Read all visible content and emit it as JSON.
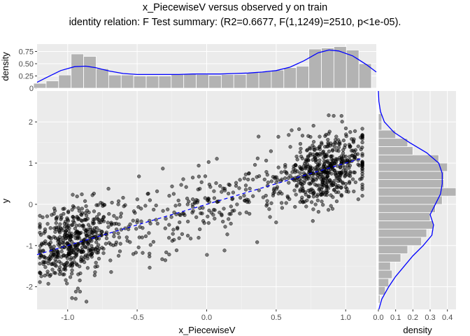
{
  "title": "x_PiecewiseV versus observed y on train",
  "subtitle": "identity relation: F Test summary: (R2=0.6677, F(1,1249)=2510, p<1e-05).",
  "colors": {
    "panel_bg": "#ebebeb",
    "grid_major": "#ffffff",
    "points": "#000000",
    "fit_line": "#0000ff",
    "density_line": "#0000ff",
    "hist_fill": "#b3b3b3"
  },
  "chart_data": [
    {
      "type": "scatter",
      "xlabel": "x_PiecewiseV",
      "ylabel": "y",
      "xlim": [
        -1.22,
        1.22
      ],
      "ylim": [
        -2.55,
        2.75
      ],
      "xticks": [
        -1.0,
        -0.5,
        0.0,
        0.5,
        1.0
      ],
      "xtick_labels": [
        "-1.0",
        "-0.5",
        "0.0",
        "0.5",
        "1.0"
      ],
      "yticks": [
        -2,
        -1,
        0,
        1,
        2
      ],
      "ytick_labels": [
        "-2",
        "-1",
        "0",
        "1",
        "2"
      ],
      "n_points": 1251,
      "point_alpha": 0.5,
      "fit_line": {
        "style": "dashed",
        "x": [
          -1.22,
          1.12
        ],
        "y": [
          -1.22,
          1.12
        ]
      },
      "grid": true
    },
    {
      "type": "bar",
      "role": "top-marginal-histogram",
      "ylabel": "density",
      "ylim": [
        0,
        0.9
      ],
      "yticks": [
        0,
        0.25,
        0.5,
        0.75
      ],
      "ytick_labels": [
        "0",
        "0.25",
        "0.50",
        "0.75"
      ],
      "bins_x": [
        -1.2,
        -1.11,
        -1.02,
        -0.93,
        -0.84,
        -0.75,
        -0.66,
        -0.57,
        -0.48,
        -0.39,
        -0.3,
        -0.21,
        -0.12,
        -0.03,
        0.06,
        0.15,
        0.24,
        0.33,
        0.42,
        0.51,
        0.6,
        0.69,
        0.78,
        0.87,
        0.96,
        1.05,
        1.14
      ],
      "values": [
        0.1,
        0.15,
        0.27,
        0.7,
        0.65,
        0.4,
        0.27,
        0.27,
        0.25,
        0.25,
        0.25,
        0.28,
        0.3,
        0.28,
        0.26,
        0.28,
        0.28,
        0.32,
        0.34,
        0.37,
        0.42,
        0.45,
        0.8,
        0.82,
        0.85,
        0.78,
        0.5
      ],
      "density_curve": {
        "x": [
          -1.22,
          -1.15,
          -1.05,
          -0.95,
          -0.87,
          -0.8,
          -0.7,
          -0.6,
          -0.5,
          -0.4,
          -0.3,
          -0.2,
          -0.1,
          0.0,
          0.1,
          0.2,
          0.3,
          0.4,
          0.5,
          0.6,
          0.7,
          0.8,
          0.88,
          0.95,
          1.05,
          1.15,
          1.22
        ],
        "y": [
          0.12,
          0.22,
          0.36,
          0.44,
          0.45,
          0.42,
          0.35,
          0.3,
          0.28,
          0.28,
          0.28,
          0.28,
          0.29,
          0.29,
          0.29,
          0.3,
          0.31,
          0.33,
          0.36,
          0.43,
          0.56,
          0.72,
          0.78,
          0.76,
          0.66,
          0.48,
          0.33
        ]
      }
    },
    {
      "type": "bar",
      "role": "right-marginal-histogram",
      "orientation": "horizontal",
      "xlabel": "density",
      "xlim": [
        0,
        0.45
      ],
      "xticks": [
        0,
        0.1,
        0.2,
        0.3,
        0.4
      ],
      "xtick_labels": [
        "0.0",
        "0.1",
        "0.2",
        "0.3",
        "0.4"
      ],
      "bins_y": [
        -2.3,
        -2.1,
        -1.9,
        -1.7,
        -1.5,
        -1.3,
        -1.1,
        -0.9,
        -0.7,
        -0.5,
        -0.3,
        -0.1,
        0.1,
        0.3,
        0.5,
        0.7,
        0.9,
        1.1,
        1.3,
        1.5,
        1.7,
        1.9,
        2.1
      ],
      "values": [
        0.01,
        0.04,
        0.06,
        0.08,
        0.07,
        0.13,
        0.17,
        0.25,
        0.28,
        0.32,
        0.3,
        0.33,
        0.37,
        0.45,
        0.38,
        0.38,
        0.4,
        0.35,
        0.2,
        0.17,
        0.1,
        0.02,
        0.02
      ],
      "density_curve": {
        "y": [
          -2.55,
          -2.3,
          -2.0,
          -1.75,
          -1.5,
          -1.25,
          -1.0,
          -0.75,
          -0.5,
          -0.25,
          0.0,
          0.25,
          0.5,
          0.75,
          1.0,
          1.25,
          1.5,
          1.75,
          2.0,
          2.25,
          2.5,
          2.75
        ],
        "x": [
          0.003,
          0.02,
          0.06,
          0.1,
          0.15,
          0.2,
          0.26,
          0.31,
          0.32,
          0.3,
          0.33,
          0.36,
          0.37,
          0.37,
          0.35,
          0.28,
          0.18,
          0.09,
          0.035,
          0.012,
          0.003,
          0.0
        ]
      }
    }
  ]
}
